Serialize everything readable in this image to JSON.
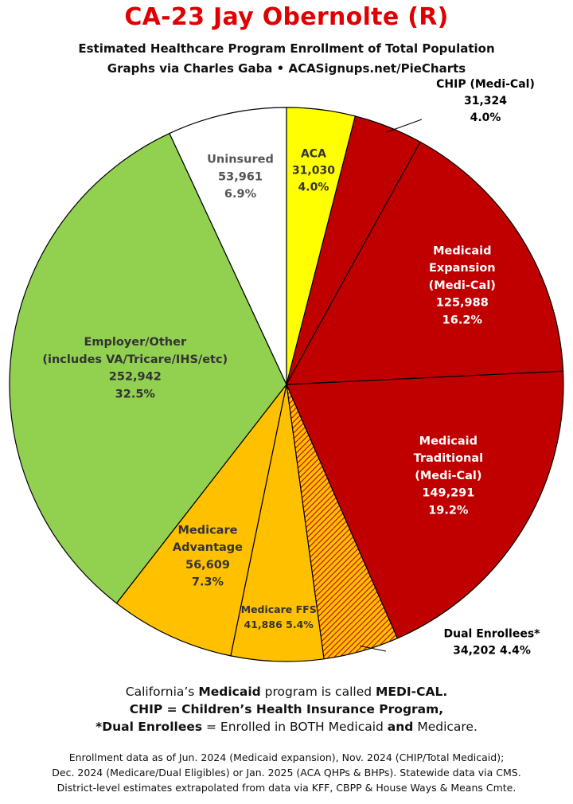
{
  "title": "CA-23 Jay Obernolte (R)",
  "subtitle": "Estimated Healthcare Program Enrollment of Total Population",
  "source_line": "Graphs via Charles Gaba  •  ACASignups.net/PieCharts",
  "notes": {
    "line1_pre": "California’s ",
    "line1_b1": "Medicaid",
    "line1_mid": " program is called ",
    "line1_b2": "MEDI-CAL.",
    "line2_b1": "CHIP",
    "line2_mid": " = ",
    "line2_b2": "Children’s Health Insurance Program,",
    "line3_b1": "*Dual Enrollees",
    "line3_mid": " = Enrolled in BOTH Medicaid ",
    "line3_b2": "and",
    "line3_post": " Medicare."
  },
  "footer": [
    "Enrollment data as of Jun. 2024 (Medicaid expansion), Nov. 2024 (CHIP/Total Medicaid);",
    "Dec. 2024 (Medicare/Dual Eligibles) or Jan. 2025 (ACA QHPs & BHPs). Statewide data via CMS.",
    "District-level estimates extrapolated from data via KFF, CBPP & House Ways & Means Cmte."
  ],
  "chart_data": {
    "type": "pie",
    "start_angle": "top, clockwise",
    "slices": [
      {
        "name": "ACA",
        "value": 31030,
        "percent": "4.0%",
        "value_label": "31,030",
        "label_lines": [
          "ACA"
        ],
        "color": "#ffff00",
        "text_color": "#333333"
      },
      {
        "name": "CHIP (Medi-Cal)",
        "value": 31324,
        "percent": "4.0%",
        "value_label": "31,324",
        "label_lines": [
          "CHIP (Medi-Cal)"
        ],
        "color": "#c00000",
        "text_color": "#000000",
        "label_outside": true
      },
      {
        "name": "Medicaid Expansion (Medi-Cal)",
        "value": 125988,
        "percent": "16.2%",
        "value_label": "125,988",
        "label_lines": [
          "Medicaid",
          "Expansion",
          "(Medi-Cal)"
        ],
        "color": "#c00000",
        "text_color": "#ffffff"
      },
      {
        "name": "Medicaid Traditional (Medi-Cal)",
        "value": 149291,
        "percent": "19.2%",
        "value_label": "149,291",
        "label_lines": [
          "Medicaid",
          "Traditional",
          "(Medi-Cal)"
        ],
        "color": "#c00000",
        "text_color": "#ffffff"
      },
      {
        "name": "Dual Enrollees*",
        "value": 34202,
        "percent": "4.4%",
        "value_label": "34,202",
        "label_lines": [
          "Dual Enrollees*"
        ],
        "color": "#ffc000",
        "pattern": "red-hatch",
        "text_color": "#000000",
        "label_outside": true
      },
      {
        "name": "Medicare FFS",
        "value": 41886,
        "percent": "5.4%",
        "value_label": "41,886",
        "label_lines": [
          "Medicare FFS"
        ],
        "color": "#ffc000",
        "text_color": "#333333"
      },
      {
        "name": "Medicare Advantage",
        "value": 56609,
        "percent": "7.3%",
        "value_label": "56,609",
        "label_lines": [
          "Medicare",
          "Advantage"
        ],
        "color": "#ffc000",
        "text_color": "#333333"
      },
      {
        "name": "Employer/Other (includes VA/Tricare/IHS/etc)",
        "value": 252942,
        "percent": "32.5%",
        "value_label": "252,942",
        "label_lines": [
          "Employer/Other",
          "(includes VA/Tricare/IHS/etc)"
        ],
        "color": "#92d050",
        "text_color": "#333333"
      },
      {
        "name": "Uninsured",
        "value": 53961,
        "percent": "6.9%",
        "value_label": "53,961",
        "label_lines": [
          "Uninsured"
        ],
        "color": "#ffffff",
        "text_color": "#555555"
      }
    ]
  }
}
